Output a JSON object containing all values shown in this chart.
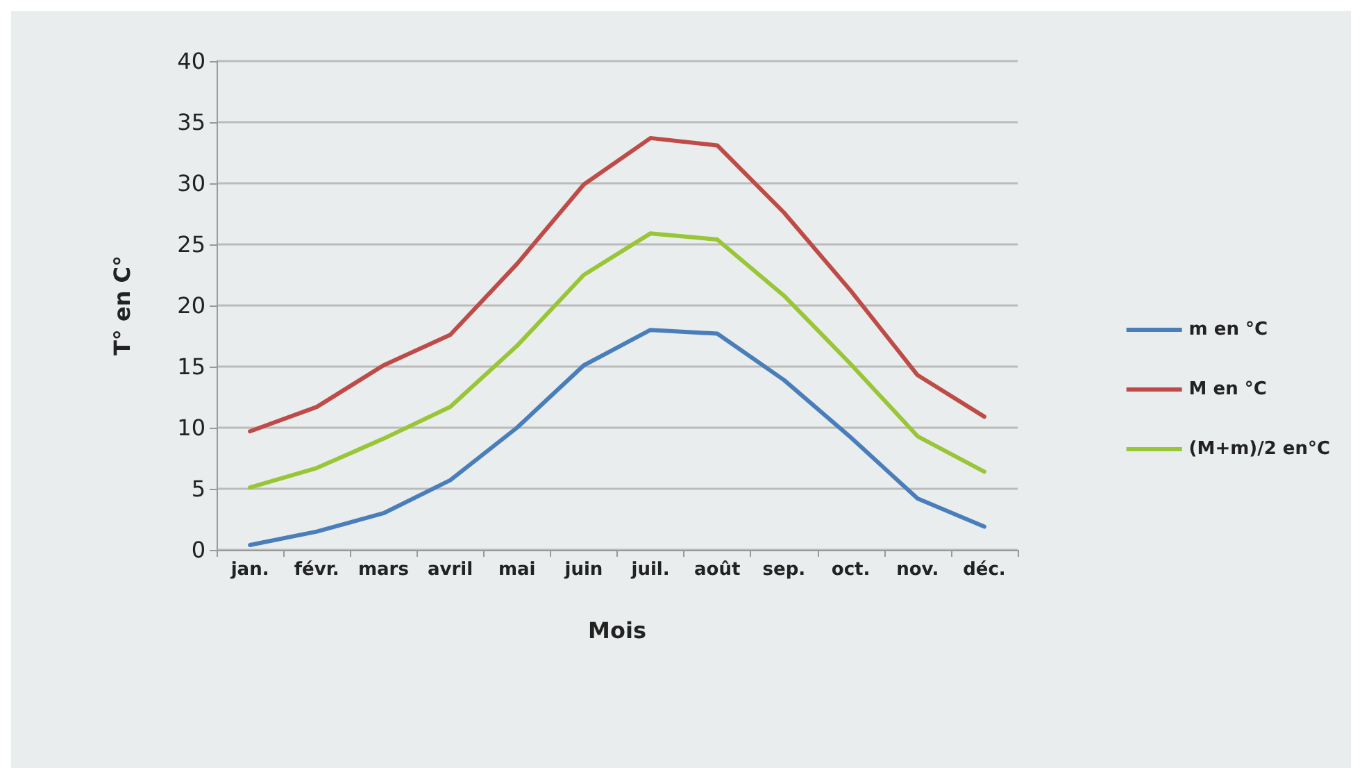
{
  "chart_data": {
    "type": "line",
    "xlabel": "Mois",
    "ylabel": "T° en C°",
    "categories": [
      "jan.",
      "févr.",
      "mars",
      "avril",
      "mai",
      "juin",
      "juil.",
      "août",
      "sep.",
      "oct.",
      "nov.",
      "déc."
    ],
    "series": [
      {
        "name": "m en °C",
        "color": "#4a7ebb",
        "values": [
          0.4,
          1.5,
          3.0,
          5.7,
          10,
          15.1,
          18,
          17.7,
          13.9,
          9.2,
          4.2,
          1.9
        ]
      },
      {
        "name": "M en °C",
        "color": "#be4b48",
        "values": [
          9.7,
          11.7,
          15.1,
          17.6,
          23.4,
          29.9,
          33.7,
          33.1,
          27.6,
          21.2,
          14.3,
          10.9
        ]
      },
      {
        "name": "(M+m)/2 en°C",
        "color": "#98c636",
        "values": [
          5.1,
          6.7,
          9.1,
          11.7,
          16.7,
          22.5,
          25.9,
          25.4,
          20.8,
          15.2,
          9.3,
          6.4
        ]
      }
    ],
    "ylim": [
      0,
      40
    ],
    "yticks": [
      0,
      5,
      10,
      15,
      20,
      25,
      30,
      35,
      40
    ],
    "grid": "y",
    "legend": "right",
    "marker": "none",
    "line_style": "solid"
  }
}
